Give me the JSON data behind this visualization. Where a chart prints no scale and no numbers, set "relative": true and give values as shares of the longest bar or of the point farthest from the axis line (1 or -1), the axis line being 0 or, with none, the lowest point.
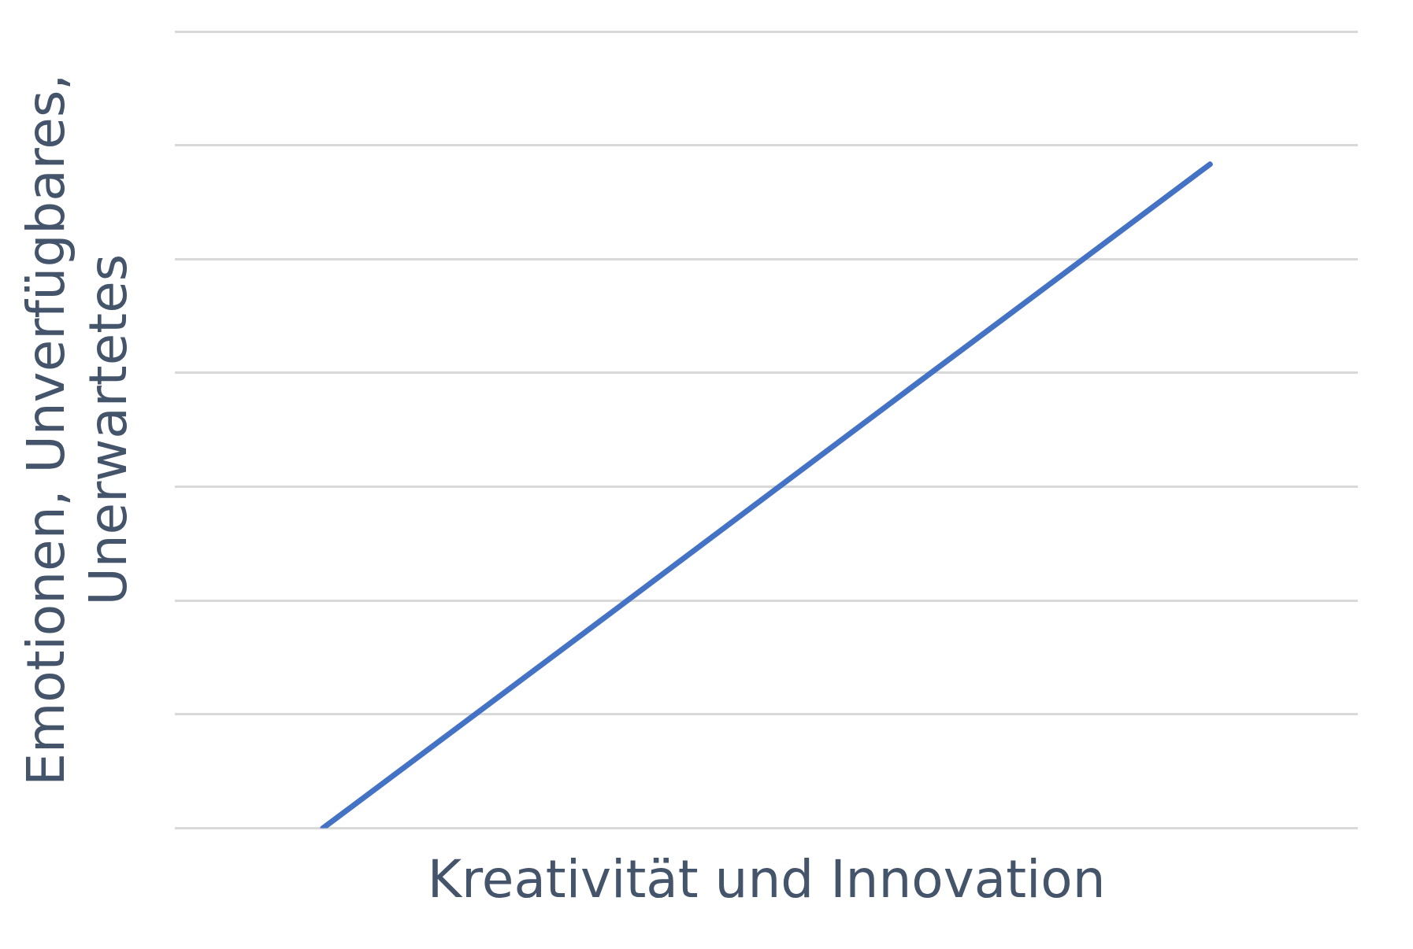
{
  "chart_data": {
    "type": "line",
    "relative": true,
    "xlabel": "Kreativität und Innovation",
    "ylabel": "Emotionen, Unverfügbares, Unerwartetes",
    "categories": [
      null,
      null,
      null,
      null
    ],
    "series": [
      {
        "color": "#4472c4",
        "values": [
          0,
          0.333,
          0.667,
          1
        ]
      }
    ],
    "grid": "y",
    "legend": false,
    "marker": "none",
    "line_style": "solid"
  }
}
